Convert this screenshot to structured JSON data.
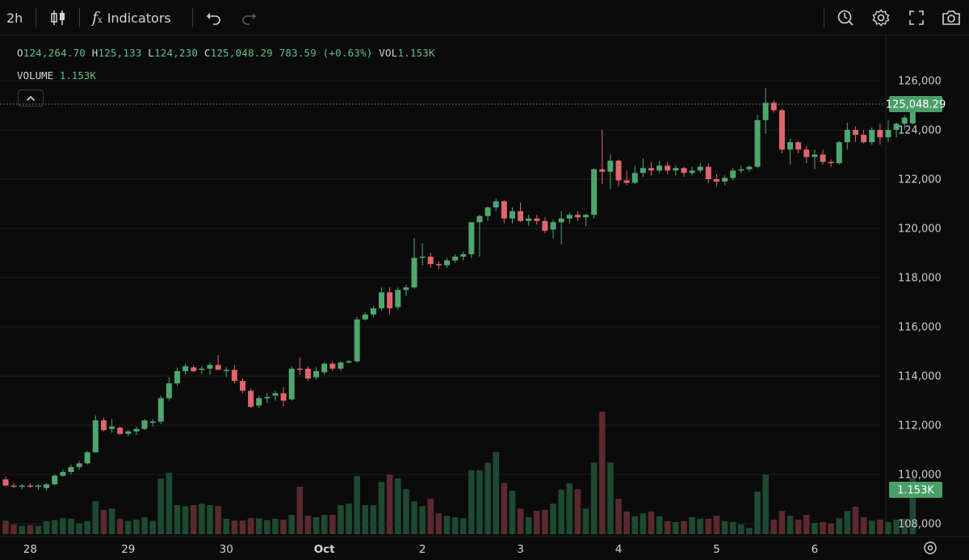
{
  "toolbar": {
    "interval": "2h",
    "indicators_label": "Indicators",
    "icons": [
      "candles-icon",
      "function-icon",
      "undo-icon",
      "redo-icon",
      "alert-icon",
      "settings-icon",
      "fullscreen-icon",
      "camera-icon"
    ]
  },
  "legend": {
    "o_key": "O",
    "o_val": "124,264.70",
    "h_key": "H",
    "h_val": "125,133",
    "l_key": "L",
    "l_val": "124,230",
    "c_key": "C",
    "c_val": "125,048.29",
    "change": "783.59 (+0.63%)",
    "vol_key": "VOL",
    "vol_val": "1.153K"
  },
  "volume_legend": {
    "label": "VOLUME",
    "value": "1.153K"
  },
  "colors": {
    "up": "#4fa770",
    "down": "#e0656c",
    "vol_up": "#1e4a31",
    "vol_down": "#5b2a2e",
    "price_tag": "#4a9e68"
  },
  "price_tag": "125,048.29",
  "volume_tag": "1.153K",
  "chart_data": {
    "type": "candlestick",
    "y_ticks": [
      "126,000",
      "124,000",
      "122,000",
      "120,000",
      "118,000",
      "116,000",
      "114,000",
      "112,000",
      "110,000",
      "108,000"
    ],
    "y_tick_values": [
      126000,
      124000,
      122000,
      120000,
      118000,
      116000,
      114000,
      112000,
      110000,
      108000
    ],
    "x_ticks": [
      "28",
      "29",
      "30",
      "Oct",
      "2",
      "3",
      "4",
      "5",
      "6"
    ],
    "x_tick_bar_index": [
      3,
      15,
      27,
      39,
      51,
      63,
      75,
      87,
      99
    ],
    "last_price": 125048.29,
    "candles": [
      [
        109800,
        109900,
        109500,
        109550,
        0.28
      ],
      [
        109550,
        109650,
        109450,
        109500,
        0.2
      ],
      [
        109500,
        109600,
        109400,
        109550,
        0.17
      ],
      [
        109550,
        109650,
        109450,
        109500,
        0.19
      ],
      [
        109500,
        109600,
        109380,
        109550,
        0.17
      ],
      [
        109450,
        109650,
        109350,
        109600,
        0.27
      ],
      [
        109600,
        110000,
        109550,
        109950,
        0.29
      ],
      [
        109950,
        110200,
        109900,
        110100,
        0.33
      ],
      [
        110100,
        110400,
        110000,
        110300,
        0.32
      ],
      [
        110300,
        110550,
        110200,
        110450,
        0.22
      ],
      [
        110450,
        110950,
        110400,
        110900,
        0.27
      ],
      [
        110900,
        112400,
        110900,
        112200,
        0.68
      ],
      [
        112200,
        112300,
        111750,
        111800,
        0.5
      ],
      [
        111850,
        112250,
        111700,
        111950,
        0.53
      ],
      [
        111900,
        111950,
        111600,
        111650,
        0.32
      ],
      [
        111650,
        111800,
        111550,
        111750,
        0.27
      ],
      [
        111750,
        111950,
        111600,
        111850,
        0.3
      ],
      [
        111850,
        112250,
        111800,
        112200,
        0.35
      ],
      [
        112100,
        112250,
        111950,
        112150,
        0.27
      ],
      [
        112150,
        113200,
        112050,
        113100,
        1.15
      ],
      [
        113100,
        113950,
        113000,
        113700,
        1.27
      ],
      [
        113700,
        114350,
        113600,
        114200,
        0.6
      ],
      [
        114200,
        114500,
        114050,
        114400,
        0.58
      ],
      [
        114350,
        114450,
        114150,
        114200,
        0.6
      ],
      [
        114250,
        114400,
        114100,
        114300,
        0.63
      ],
      [
        114300,
        114550,
        114050,
        114450,
        0.6
      ],
      [
        114450,
        114850,
        114350,
        114250,
        0.58
      ],
      [
        114200,
        114350,
        113950,
        114250,
        0.32
      ],
      [
        114250,
        114450,
        113700,
        113800,
        0.28
      ],
      [
        113800,
        113900,
        113300,
        113400,
        0.28
      ],
      [
        113400,
        113500,
        112700,
        112750,
        0.33
      ],
      [
        112800,
        113200,
        112700,
        113100,
        0.33
      ],
      [
        113100,
        113300,
        112900,
        113150,
        0.29
      ],
      [
        113200,
        113400,
        113000,
        113300,
        0.32
      ],
      [
        113300,
        113550,
        112750,
        113000,
        0.3
      ],
      [
        113050,
        114400,
        113000,
        114300,
        0.4
      ],
      [
        114300,
        114750,
        114050,
        114250,
        0.98
      ],
      [
        114300,
        114400,
        113800,
        113900,
        0.38
      ],
      [
        113950,
        114350,
        113850,
        114200,
        0.35
      ],
      [
        114150,
        114550,
        114050,
        114500,
        0.4
      ],
      [
        114500,
        114600,
        114200,
        114300,
        0.4
      ],
      [
        114300,
        114600,
        114200,
        114550,
        0.6
      ],
      [
        114550,
        114650,
        114500,
        114600,
        0.63
      ],
      [
        114600,
        116400,
        114550,
        116300,
        1.2
      ],
      [
        116300,
        116600,
        116250,
        116500,
        0.6
      ],
      [
        116500,
        116850,
        116400,
        116750,
        0.6
      ],
      [
        116750,
        117600,
        116650,
        117400,
        1.08
      ],
      [
        117400,
        117600,
        116500,
        116750,
        1.23
      ],
      [
        116800,
        117600,
        116700,
        117500,
        1.15
      ],
      [
        117500,
        117700,
        117250,
        117600,
        0.93
      ],
      [
        117600,
        119600,
        117550,
        118800,
        0.68
      ],
      [
        118800,
        119400,
        118500,
        118850,
        0.58
      ],
      [
        118850,
        119000,
        118400,
        118550,
        0.73
      ],
      [
        118550,
        118650,
        118350,
        118500,
        0.43
      ],
      [
        118500,
        118800,
        118400,
        118700,
        0.38
      ],
      [
        118700,
        118950,
        118600,
        118850,
        0.35
      ],
      [
        118850,
        119050,
        118700,
        118950,
        0.33
      ],
      [
        118950,
        120250,
        118800,
        120250,
        1.32
      ],
      [
        120250,
        120550,
        118850,
        120500,
        1.32
      ],
      [
        120500,
        120900,
        120300,
        120850,
        1.48
      ],
      [
        120850,
        121200,
        120700,
        121100,
        1.7
      ],
      [
        121100,
        121150,
        120200,
        120400,
        1.06
      ],
      [
        120400,
        120850,
        120200,
        120700,
        0.9
      ],
      [
        120700,
        121050,
        120250,
        120300,
        0.53
      ],
      [
        120300,
        120550,
        120100,
        120400,
        0.35
      ],
      [
        120400,
        120550,
        120150,
        120300,
        0.48
      ],
      [
        120300,
        120450,
        119800,
        119900,
        0.5
      ],
      [
        119950,
        120350,
        119600,
        120250,
        0.63
      ],
      [
        120250,
        120700,
        119350,
        120400,
        0.92
      ],
      [
        120400,
        120650,
        120200,
        120550,
        1.05
      ],
      [
        120550,
        120700,
        120300,
        120450,
        0.93
      ],
      [
        120450,
        120600,
        120100,
        120550,
        0.53
      ],
      [
        120550,
        122450,
        120400,
        122400,
        1.48
      ],
      [
        122400,
        124000,
        121800,
        122300,
        2.53
      ],
      [
        122300,
        123000,
        121600,
        122750,
        1.48
      ],
      [
        122750,
        122800,
        121700,
        121950,
        0.73
      ],
      [
        121950,
        122350,
        121750,
        121850,
        0.47
      ],
      [
        121850,
        122550,
        121800,
        122250,
        0.37
      ],
      [
        122250,
        122850,
        122100,
        122450,
        0.43
      ],
      [
        122450,
        122700,
        122150,
        122350,
        0.47
      ],
      [
        122350,
        122750,
        122250,
        122550,
        0.37
      ],
      [
        122550,
        122700,
        122200,
        122350,
        0.27
      ],
      [
        122350,
        122550,
        122150,
        122450,
        0.25
      ],
      [
        122450,
        122500,
        122100,
        122250,
        0.27
      ],
      [
        122250,
        122500,
        122150,
        122350,
        0.35
      ],
      [
        122350,
        122650,
        122250,
        122500,
        0.32
      ],
      [
        122500,
        122650,
        121850,
        122000,
        0.32
      ],
      [
        122000,
        122200,
        121700,
        121900,
        0.38
      ],
      [
        121900,
        122150,
        121750,
        122050,
        0.27
      ],
      [
        122050,
        122450,
        121950,
        122350,
        0.25
      ],
      [
        122350,
        122550,
        122250,
        122400,
        0.2
      ],
      [
        122400,
        122550,
        122300,
        122500,
        0.13
      ],
      [
        122500,
        124600,
        122450,
        124400,
        0.88
      ],
      [
        124400,
        125700,
        123850,
        125100,
        1.23
      ],
      [
        125100,
        125200,
        124700,
        124800,
        0.3
      ],
      [
        124800,
        124850,
        123050,
        123200,
        0.48
      ],
      [
        123200,
        123650,
        122600,
        123500,
        0.38
      ],
      [
        123500,
        123550,
        123050,
        123200,
        0.3
      ],
      [
        123200,
        123350,
        122650,
        122900,
        0.4
      ],
      [
        122900,
        123200,
        122400,
        123000,
        0.23
      ],
      [
        123000,
        123200,
        122600,
        122700,
        0.25
      ],
      [
        122700,
        122800,
        122500,
        122650,
        0.22
      ],
      [
        122650,
        123550,
        122600,
        123500,
        0.33
      ],
      [
        123500,
        124300,
        123200,
        124000,
        0.48
      ],
      [
        124000,
        124150,
        123500,
        123800,
        0.57
      ],
      [
        123800,
        124000,
        123450,
        123500,
        0.35
      ],
      [
        123500,
        124100,
        123400,
        124000,
        0.28
      ],
      [
        124000,
        124250,
        123400,
        123700,
        0.3
      ],
      [
        123700,
        124400,
        123500,
        124000,
        0.25
      ],
      [
        124000,
        124300,
        123700,
        124250,
        0.3
      ],
      [
        124250,
        124600,
        124000,
        124500,
        0.32
      ],
      [
        124264.7,
        125133,
        124230,
        125048.29,
        1.153
      ]
    ]
  }
}
